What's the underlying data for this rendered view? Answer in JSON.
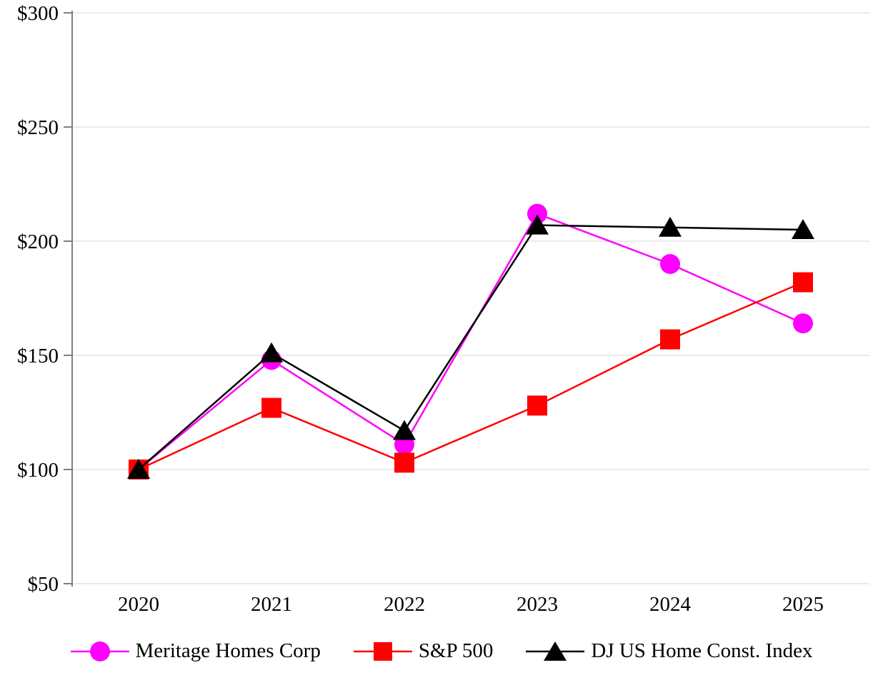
{
  "chart_data": {
    "type": "line",
    "x": [
      "2020",
      "2021",
      "2022",
      "2023",
      "2024",
      "2025"
    ],
    "xlabel": "",
    "ylabel": "",
    "ylim": [
      50,
      300
    ],
    "yticks": [
      {
        "value": 50,
        "label": "$50"
      },
      {
        "value": 100,
        "label": "$100"
      },
      {
        "value": 150,
        "label": "$150"
      },
      {
        "value": 200,
        "label": "$200"
      },
      {
        "value": 250,
        "label": "$250"
      },
      {
        "value": 300,
        "label": "$300"
      }
    ],
    "series": [
      {
        "name": "Meritage Homes Corp",
        "marker": "circle",
        "color": "#ff00ff",
        "values": [
          100,
          148,
          111,
          212,
          190,
          164
        ]
      },
      {
        "name": "S&P 500",
        "marker": "square",
        "color": "#ff0000",
        "values": [
          100,
          127,
          103,
          128,
          157,
          182
        ]
      },
      {
        "name": "DJ US Home Const. Index",
        "marker": "triangle",
        "color": "#000000",
        "values": [
          100,
          151,
          117,
          207,
          206,
          205
        ]
      }
    ],
    "grid": "horizontal",
    "legend_position": "bottom",
    "axis_color": "#7f7f7f",
    "grid_color": "#eaeaea",
    "background": "#ffffff",
    "value_prefix": "$"
  }
}
